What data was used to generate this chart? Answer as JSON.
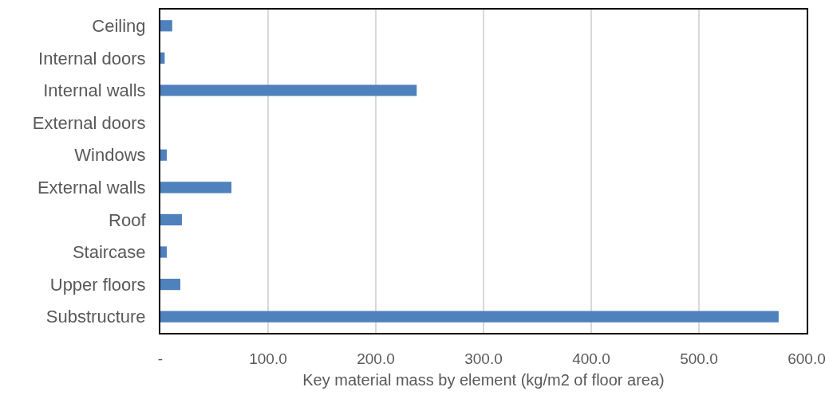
{
  "chart_data": {
    "type": "bar",
    "orientation": "horizontal",
    "xlabel": "Key material mass by element (kg/m2 of floor area)",
    "categories": [
      "Ceiling",
      "Internal doors",
      "Internal walls",
      "External doors",
      "Windows",
      "External walls",
      "Roof",
      "Staircase",
      "Upper floors",
      "Substructure"
    ],
    "values": [
      11,
      4,
      238,
      0,
      6,
      66,
      20,
      6,
      18.5,
      574
    ],
    "color": "#4f81bd",
    "xlim": [
      0,
      600
    ],
    "xticks": [
      {
        "value": 0,
        "label": "-"
      },
      {
        "value": 100,
        "label": "100.0"
      },
      {
        "value": 200,
        "label": "200.0"
      },
      {
        "value": 300,
        "label": "300.0"
      },
      {
        "value": 400,
        "label": "400.0"
      },
      {
        "value": 500,
        "label": "500.0"
      },
      {
        "value": 600,
        "label": "600.0"
      }
    ],
    "grid": "x"
  }
}
